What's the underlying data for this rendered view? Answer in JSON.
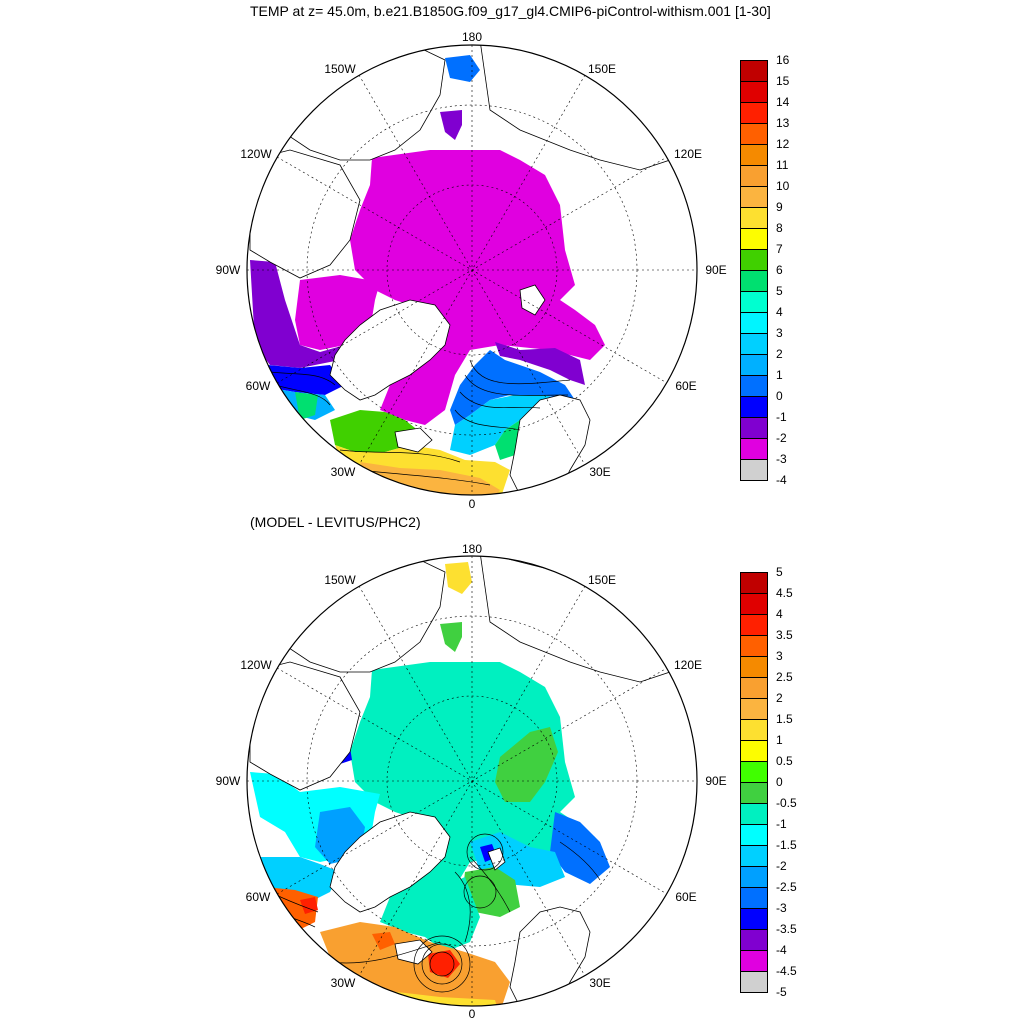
{
  "title": "TEMP at z=  45.0m, b.e21.B1850G.f09_g17_gl4.CMIP6-piControl-withism.001 [1-30]",
  "subtitle": "(MODEL - LEVITUS/PHC2)",
  "lon_labels": {
    "top": "180",
    "bottom": "0",
    "ul": "150W",
    "ur": "150E",
    "ml_upper": "120W",
    "mr_upper": "120E",
    "ml": "90W",
    "mr": "90E",
    "ll_upper": "60W",
    "lr_upper": "60E",
    "ll": "30W",
    "lr": "30E"
  },
  "panels": [
    {
      "id": "temperature",
      "colorbar": {
        "labels": [
          "16",
          "15",
          "14",
          "13",
          "12",
          "11",
          "10",
          "9",
          "8",
          "7",
          "6",
          "5",
          "4",
          "3",
          "2",
          "1",
          "0",
          "-1",
          "-2",
          "-3",
          "-4"
        ],
        "colors": [
          "#c00000",
          "#e00000",
          "#ff2000",
          "#ff6000",
          "#f58a00",
          "#f9a030",
          "#fbb440",
          "#fde030",
          "#fdfd00",
          "#40d000",
          "#00e070",
          "#00ffd0",
          "#00f5ff",
          "#00d0ff",
          "#00b0ff",
          "#0070ff",
          "#0000ff",
          "#8000d0",
          "#e000e0",
          "#d0d0d0",
          "#707070"
        ],
        "colors_note_order": "top_to_bottom"
      }
    },
    {
      "id": "difference",
      "colorbar": {
        "labels": [
          "5",
          "4.5",
          "4",
          "3.5",
          "3",
          "2.5",
          "2",
          "1.5",
          "1",
          "0.5",
          "0",
          "-0.5",
          "-1",
          "-1.5",
          "-2",
          "-2.5",
          "-3",
          "-3.5",
          "-4",
          "-4.5",
          "-5"
        ],
        "colors": [
          "#c00000",
          "#e00000",
          "#ff2000",
          "#ff6000",
          "#f58a00",
          "#f9a030",
          "#fbb440",
          "#fde030",
          "#fdfd00",
          "#40ff00",
          "#40d040",
          "#00f0c0",
          "#00ffff",
          "#00d0ff",
          "#00a0ff",
          "#0070ff",
          "#0000ff",
          "#8000d0",
          "#e000e0",
          "#d0d0d0",
          "#707070"
        ],
        "colors_note_order": "top_to_bottom"
      }
    }
  ]
}
